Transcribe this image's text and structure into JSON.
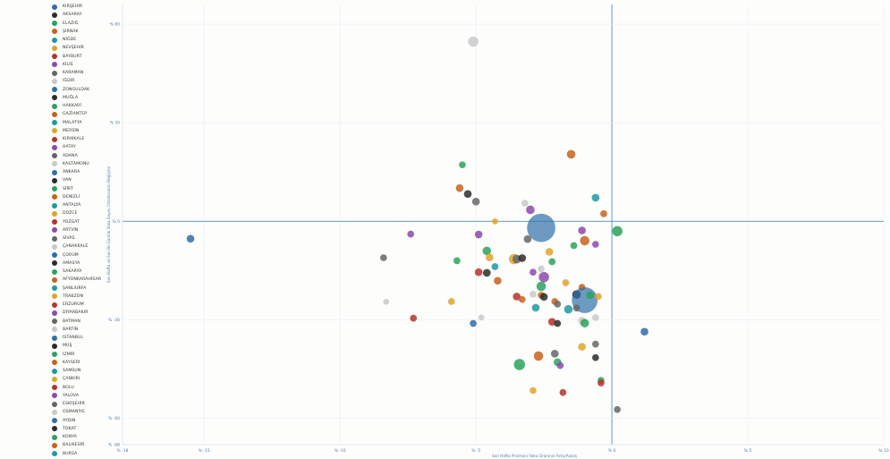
{
  "chart_data": {
    "type": "scatter",
    "xlabel": "Son Hafta Pnömoni Vaka Oranının Artış/Azalış",
    "ylabel": "Son Hafta ve Son İki Günlük Vaka Sayısı Ortalamaları Değişimi",
    "xlim": [
      -18,
      10
    ],
    "ylim": [
      -68,
      66
    ],
    "x_ticks": [
      -18,
      -15,
      -10,
      -5,
      0,
      5,
      10
    ],
    "x_tick_labels": [
      "% -18",
      "% -15",
      "% -10",
      "% -5",
      "% 0",
      "% 5",
      "% 10"
    ],
    "y_ticks": [
      60,
      30,
      0,
      -30,
      -60,
      -68
    ],
    "y_tick_labels": [
      "% 60",
      "% 30",
      "% 0",
      "% -30",
      "% -60",
      "% -68"
    ],
    "grid": true,
    "legend_position": "left",
    "legend": [
      {
        "name": "KIRŞEHİR",
        "color": "#2f6fa8"
      },
      {
        "name": "AKSARAY",
        "color": "#2c2c2c"
      },
      {
        "name": "ELAZIĞ",
        "color": "#2aa35a"
      },
      {
        "name": "ŞIRNAK",
        "color": "#c8631c"
      },
      {
        "name": "NİĞDE",
        "color": "#1f9aa0"
      },
      {
        "name": "NEVŞEHİR",
        "color": "#e0a32b"
      },
      {
        "name": "BAYBURT",
        "color": "#b5332e"
      },
      {
        "name": "KİLİS",
        "color": "#8c4aad"
      },
      {
        "name": "KARAMAN",
        "color": "#666666"
      },
      {
        "name": "IĞDIR",
        "color": "#c9c9c9"
      },
      {
        "name": "ZONGULDAK",
        "color": "#2f6fa8"
      },
      {
        "name": "MUĞLA",
        "color": "#2c2c2c"
      },
      {
        "name": "HAKKARİ",
        "color": "#2aa35a"
      },
      {
        "name": "GAZİANTEP",
        "color": "#c8631c"
      },
      {
        "name": "MALATYA",
        "color": "#1f9aa0"
      },
      {
        "name": "MERSİN",
        "color": "#e0a32b"
      },
      {
        "name": "KIRIKKALE",
        "color": "#b5332e"
      },
      {
        "name": "HATAY",
        "color": "#8c4aad"
      },
      {
        "name": "ADANA",
        "color": "#666666"
      },
      {
        "name": "KASTAMONU",
        "color": "#c9c9c9"
      },
      {
        "name": "ANKARA",
        "color": "#2f6fa8"
      },
      {
        "name": "VAN",
        "color": "#2c2c2c"
      },
      {
        "name": "SİİRT",
        "color": "#2aa35a"
      },
      {
        "name": "DENİZLİ",
        "color": "#c8631c"
      },
      {
        "name": "ANTALYA",
        "color": "#1f9aa0"
      },
      {
        "name": "DÜZCE",
        "color": "#e0a32b"
      },
      {
        "name": "YOZGAT",
        "color": "#b5332e"
      },
      {
        "name": "ARTVİN",
        "color": "#8c4aad"
      },
      {
        "name": "SİVAS",
        "color": "#666666"
      },
      {
        "name": "ÇANAKKALE",
        "color": "#c9c9c9"
      },
      {
        "name": "ÇORUM",
        "color": "#2f6fa8"
      },
      {
        "name": "AMASYA",
        "color": "#2c2c2c"
      },
      {
        "name": "SAKARYA",
        "color": "#2aa35a"
      },
      {
        "name": "AFYONKARAHİSAR",
        "color": "#c8631c"
      },
      {
        "name": "ŞANLIURFA",
        "color": "#1f9aa0"
      },
      {
        "name": "TRABZON",
        "color": "#e0a32b"
      },
      {
        "name": "ERZURUM",
        "color": "#b5332e"
      },
      {
        "name": "DİYARBAKIR",
        "color": "#8c4aad"
      },
      {
        "name": "BATMAN",
        "color": "#666666"
      },
      {
        "name": "BARTIN",
        "color": "#c9c9c9"
      },
      {
        "name": "İSTANBUL",
        "color": "#2f6fa8"
      },
      {
        "name": "MUŞ",
        "color": "#2c2c2c"
      },
      {
        "name": "İZMİR",
        "color": "#2aa35a"
      },
      {
        "name": "KAYSERİ",
        "color": "#c8631c"
      },
      {
        "name": "SAMSUN",
        "color": "#1f9aa0"
      },
      {
        "name": "ÇANKIRI",
        "color": "#e0a32b"
      },
      {
        "name": "BOLU",
        "color": "#b5332e"
      },
      {
        "name": "YALOVA",
        "color": "#8c4aad"
      },
      {
        "name": "ESKİŞEHİR",
        "color": "#666666"
      },
      {
        "name": "OSMANİYE",
        "color": "#c9c9c9"
      },
      {
        "name": "AYDIN",
        "color": "#2f6fa8"
      },
      {
        "name": "TOKAT",
        "color": "#2c2c2c"
      },
      {
        "name": "KONYA",
        "color": "#2aa35a"
      },
      {
        "name": "BALIKESİR",
        "color": "#c8631c"
      },
      {
        "name": "BURSA",
        "color": "#1f9aa0"
      }
    ],
    "points": [
      {
        "x": -5.1,
        "y": 54.7,
        "r": 1.2,
        "color": "#c9c9c9"
      },
      {
        "x": -1.5,
        "y": 20.4,
        "r": 1.0,
        "color": "#c8631c"
      },
      {
        "x": -5.5,
        "y": 17.2,
        "r": 0.8,
        "color": "#2aa35a"
      },
      {
        "x": -5.6,
        "y": 10.1,
        "r": 0.9,
        "color": "#c8631c"
      },
      {
        "x": -5.3,
        "y": 8.3,
        "r": 0.9,
        "color": "#2c2c2c"
      },
      {
        "x": -5.0,
        "y": 6.0,
        "r": 0.9,
        "color": "#666666"
      },
      {
        "x": -3.2,
        "y": 5.5,
        "r": 0.8,
        "color": "#c9c9c9"
      },
      {
        "x": -3.0,
        "y": 3.5,
        "r": 1.0,
        "color": "#8c4aad"
      },
      {
        "x": -0.6,
        "y": 7.2,
        "r": 0.9,
        "color": "#1f9aa0"
      },
      {
        "x": -0.3,
        "y": 2.3,
        "r": 0.8,
        "color": "#c8631c"
      },
      {
        "x": -4.3,
        "y": 0.0,
        "r": 0.7,
        "color": "#e0a32b"
      },
      {
        "x": -2.6,
        "y": -2.0,
        "r": 3.3,
        "color": "#2f6fa8"
      },
      {
        "x": -1.1,
        "y": -2.8,
        "r": 0.9,
        "color": "#8c4aad"
      },
      {
        "x": 0.2,
        "y": -3.0,
        "r": 1.2,
        "color": "#2aa35a"
      },
      {
        "x": -15.5,
        "y": -5.3,
        "r": 0.9,
        "color": "#2f6fa8"
      },
      {
        "x": -7.4,
        "y": -3.9,
        "r": 0.8,
        "color": "#8c4aad"
      },
      {
        "x": -4.9,
        "y": -4.0,
        "r": 0.9,
        "color": "#8c4aad"
      },
      {
        "x": -3.1,
        "y": -5.4,
        "r": 0.9,
        "color": "#666666"
      },
      {
        "x": -1.0,
        "y": -5.9,
        "r": 1.1,
        "color": "#c8631c"
      },
      {
        "x": -0.6,
        "y": -7.0,
        "r": 0.8,
        "color": "#8c4aad"
      },
      {
        "x": -1.4,
        "y": -7.4,
        "r": 0.8,
        "color": "#2aa35a"
      },
      {
        "x": -4.6,
        "y": -9.0,
        "r": 1.0,
        "color": "#2aa35a"
      },
      {
        "x": -2.3,
        "y": -9.3,
        "r": 0.9,
        "color": "#e0a32b"
      },
      {
        "x": -8.4,
        "y": -11.1,
        "r": 0.8,
        "color": "#666666"
      },
      {
        "x": -5.7,
        "y": -12.0,
        "r": 0.8,
        "color": "#2aa35a"
      },
      {
        "x": -4.5,
        "y": -11.0,
        "r": 0.9,
        "color": "#e0a32b"
      },
      {
        "x": -3.6,
        "y": -11.5,
        "r": 1.2,
        "color": "#e0a32b"
      },
      {
        "x": -3.5,
        "y": -11.5,
        "r": 1.0,
        "color": "#666666"
      },
      {
        "x": -3.3,
        "y": -11.2,
        "r": 0.9,
        "color": "#2c2c2c"
      },
      {
        "x": -2.2,
        "y": -12.3,
        "r": 0.8,
        "color": "#2aa35a"
      },
      {
        "x": -4.3,
        "y": -13.8,
        "r": 0.8,
        "color": "#1f9aa0"
      },
      {
        "x": -2.6,
        "y": -14.5,
        "r": 0.8,
        "color": "#c9c9c9"
      },
      {
        "x": -4.9,
        "y": -15.5,
        "r": 0.9,
        "color": "#b5332e"
      },
      {
        "x": -4.6,
        "y": -15.7,
        "r": 0.9,
        "color": "#2c2c2c"
      },
      {
        "x": -2.9,
        "y": -15.5,
        "r": 0.8,
        "color": "#8c4aad"
      },
      {
        "x": -2.5,
        "y": -17.0,
        "r": 1.2,
        "color": "#8c4aad"
      },
      {
        "x": -4.2,
        "y": -18.1,
        "r": 0.9,
        "color": "#c8631c"
      },
      {
        "x": -2.6,
        "y": -19.8,
        "r": 1.1,
        "color": "#2aa35a"
      },
      {
        "x": -1.7,
        "y": -18.7,
        "r": 0.8,
        "color": "#e0a32b"
      },
      {
        "x": -1.1,
        "y": -20.1,
        "r": 0.8,
        "color": "#c8631c"
      },
      {
        "x": -1.3,
        "y": -22.3,
        "r": 1.0,
        "color": "#2c2c2c"
      },
      {
        "x": -1.0,
        "y": -24.0,
        "r": 3.0,
        "color": "#2f6fa8"
      },
      {
        "x": -0.8,
        "y": -22.5,
        "r": 0.9,
        "color": "#2aa35a"
      },
      {
        "x": -0.5,
        "y": -22.9,
        "r": 0.8,
        "color": "#e0a32b"
      },
      {
        "x": -3.5,
        "y": -22.9,
        "r": 0.9,
        "color": "#b5332e"
      },
      {
        "x": -3.3,
        "y": -23.8,
        "r": 0.8,
        "color": "#c8631c"
      },
      {
        "x": -2.9,
        "y": -22.2,
        "r": 0.8,
        "color": "#c9c9c9"
      },
      {
        "x": -2.6,
        "y": -22.5,
        "r": 0.8,
        "color": "#c8631c"
      },
      {
        "x": -2.5,
        "y": -23.0,
        "r": 0.9,
        "color": "#2c2c2c"
      },
      {
        "x": -2.1,
        "y": -24.4,
        "r": 0.8,
        "color": "#c8631c"
      },
      {
        "x": -2.0,
        "y": -25.2,
        "r": 0.8,
        "color": "#666666"
      },
      {
        "x": -8.3,
        "y": -24.5,
        "r": 0.7,
        "color": "#c9c9c9"
      },
      {
        "x": -5.9,
        "y": -24.4,
        "r": 0.8,
        "color": "#e0a32b"
      },
      {
        "x": -2.8,
        "y": -26.3,
        "r": 0.9,
        "color": "#1f9aa0"
      },
      {
        "x": -1.6,
        "y": -26.8,
        "r": 1.0,
        "color": "#1f9aa0"
      },
      {
        "x": -1.3,
        "y": -26.4,
        "r": 0.8,
        "color": "#666666"
      },
      {
        "x": -7.3,
        "y": -29.5,
        "r": 0.8,
        "color": "#b5332e"
      },
      {
        "x": -4.8,
        "y": -29.3,
        "r": 0.7,
        "color": "#c9c9c9"
      },
      {
        "x": -2.2,
        "y": -30.6,
        "r": 0.9,
        "color": "#b5332e"
      },
      {
        "x": -2.0,
        "y": -31.1,
        "r": 0.8,
        "color": "#2c2c2c"
      },
      {
        "x": -1.1,
        "y": -30.3,
        "r": 0.9,
        "color": "#c9c9c9"
      },
      {
        "x": -1.0,
        "y": -31.0,
        "r": 1.0,
        "color": "#2aa35a"
      },
      {
        "x": -0.6,
        "y": -29.3,
        "r": 0.8,
        "color": "#c9c9c9"
      },
      {
        "x": -5.1,
        "y": -31.1,
        "r": 0.8,
        "color": "#2f6fa8"
      },
      {
        "x": 1.2,
        "y": -33.6,
        "r": 0.9,
        "color": "#2f6fa8"
      },
      {
        "x": -1.1,
        "y": -38.2,
        "r": 0.9,
        "color": "#e0a32b"
      },
      {
        "x": -0.6,
        "y": -37.4,
        "r": 0.8,
        "color": "#666666"
      },
      {
        "x": -2.7,
        "y": -41.0,
        "r": 1.1,
        "color": "#c8631c"
      },
      {
        "x": -2.1,
        "y": -40.3,
        "r": 0.9,
        "color": "#666666"
      },
      {
        "x": -2.0,
        "y": -42.9,
        "r": 0.9,
        "color": "#2aa35a"
      },
      {
        "x": -1.9,
        "y": -43.9,
        "r": 0.8,
        "color": "#8c4aad"
      },
      {
        "x": -3.4,
        "y": -43.6,
        "r": 1.3,
        "color": "#2aa35a"
      },
      {
        "x": -0.6,
        "y": -41.5,
        "r": 0.8,
        "color": "#2c2c2c"
      },
      {
        "x": -0.4,
        "y": -48.4,
        "r": 0.8,
        "color": "#2aa35a"
      },
      {
        "x": -0.4,
        "y": -49.2,
        "r": 0.8,
        "color": "#b5332e"
      },
      {
        "x": -2.9,
        "y": -51.5,
        "r": 0.8,
        "color": "#e0a32b"
      },
      {
        "x": -1.8,
        "y": -52.1,
        "r": 0.8,
        "color": "#b5332e"
      },
      {
        "x": 0.2,
        "y": -57.3,
        "r": 0.8,
        "color": "#666666"
      }
    ]
  }
}
